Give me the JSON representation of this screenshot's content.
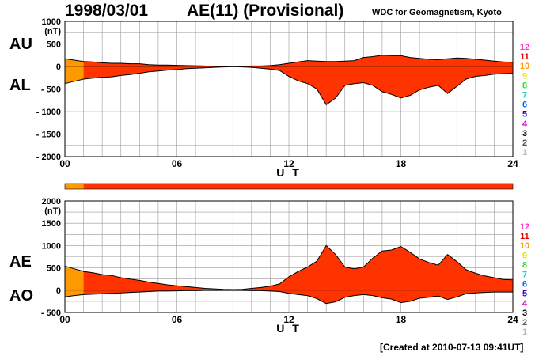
{
  "header": {
    "date": "1998/03/01",
    "index_title": "AE(11) (Provisional)",
    "organization": "WDC for Geomagnetism, Kyoto"
  },
  "footer": {
    "created": "[Created at 2010-07-13 09:41UT]"
  },
  "legend": {
    "labels": [
      "12",
      "11",
      "10",
      "9",
      "8",
      "7",
      "6",
      "5",
      "4",
      "3",
      "2",
      "1"
    ],
    "colors": [
      "#ff33cc",
      "#e60000",
      "#ff9900",
      "#e6e600",
      "#33dd33",
      "#22cccc",
      "#0066ff",
      "#3300cc",
      "#cc00cc",
      "#000000",
      "#555555",
      "#bbbbbb"
    ]
  },
  "colors": {
    "main_fill": "#ff3300",
    "partial_fill": "#ff9900",
    "outline": "#000000",
    "grid": "#999999"
  },
  "chart_data": [
    {
      "type": "area",
      "id": "au-al",
      "ylabel_units": "(nT)",
      "series_labels": [
        "AU",
        "AL"
      ],
      "xlabel": "U T",
      "xlim": [
        0,
        24
      ],
      "ylim": [
        -2000,
        1000
      ],
      "xticks": [
        "00",
        "06",
        "12",
        "18",
        "24"
      ],
      "yticks": [
        "1000",
        "500",
        "0",
        "- 500",
        "- 1000",
        "- 1500",
        "- 2000"
      ],
      "x": [
        0,
        0.5,
        1,
        1.5,
        2,
        2.5,
        3,
        3.5,
        4,
        4.5,
        5,
        5.5,
        6,
        6.5,
        7,
        7.5,
        8,
        8.5,
        9,
        9.5,
        10,
        10.5,
        11,
        11.5,
        12,
        12.5,
        13,
        13.5,
        14,
        14.5,
        15,
        15.5,
        16,
        16.5,
        17,
        17.5,
        18,
        18.5,
        19,
        19.5,
        20,
        20.5,
        21,
        21.5,
        22,
        22.5,
        23,
        23.5,
        24
      ],
      "upper": [
        170,
        140,
        110,
        100,
        80,
        70,
        70,
        60,
        60,
        40,
        30,
        30,
        25,
        20,
        15,
        10,
        5,
        5,
        5,
        5,
        10,
        10,
        20,
        40,
        70,
        100,
        130,
        120,
        110,
        110,
        120,
        130,
        200,
        220,
        250,
        240,
        240,
        200,
        180,
        160,
        150,
        170,
        190,
        180,
        160,
        140,
        120,
        100,
        90
      ],
      "lower": [
        -380,
        -330,
        -280,
        -260,
        -240,
        -230,
        -200,
        -180,
        -150,
        -120,
        -100,
        -80,
        -70,
        -50,
        -40,
        -30,
        -20,
        -10,
        -5,
        -10,
        -20,
        -40,
        -60,
        -90,
        -220,
        -320,
        -380,
        -500,
        -850,
        -700,
        -420,
        -380,
        -360,
        -420,
        -560,
        -620,
        -700,
        -640,
        -520,
        -460,
        -420,
        -600,
        -440,
        -280,
        -220,
        -200,
        -170,
        -160,
        -150
      ],
      "partial_until": 1.0
    },
    {
      "type": "area",
      "id": "ae-ao",
      "ylabel_units": "(nT)",
      "series_labels": [
        "AE",
        "AO"
      ],
      "xlabel": "U T",
      "xlim": [
        0,
        24
      ],
      "ylim": [
        -500,
        2000
      ],
      "xticks": [
        "00",
        "06",
        "12",
        "18",
        "24"
      ],
      "yticks": [
        "2000",
        "1500",
        "1000",
        "500",
        "0",
        "- 500"
      ],
      "x": [
        0,
        0.5,
        1,
        1.5,
        2,
        2.5,
        3,
        3.5,
        4,
        4.5,
        5,
        5.5,
        6,
        6.5,
        7,
        7.5,
        8,
        8.5,
        9,
        9.5,
        10,
        10.5,
        11,
        11.5,
        12,
        12.5,
        13,
        13.5,
        14,
        14.5,
        15,
        15.5,
        16,
        16.5,
        17,
        17.5,
        18,
        18.5,
        19,
        19.5,
        20,
        20.5,
        21,
        21.5,
        22,
        22.5,
        23,
        23.5,
        24
      ],
      "upper": [
        540,
        480,
        420,
        390,
        350,
        330,
        280,
        250,
        220,
        180,
        150,
        120,
        100,
        80,
        60,
        40,
        30,
        20,
        15,
        20,
        40,
        60,
        90,
        140,
        300,
        420,
        520,
        650,
        1000,
        800,
        520,
        480,
        520,
        720,
        880,
        900,
        980,
        850,
        700,
        620,
        560,
        800,
        640,
        460,
        380,
        320,
        280,
        240,
        230
      ],
      "lower": [
        -150,
        -120,
        -100,
        -90,
        -80,
        -70,
        -60,
        -50,
        -40,
        -30,
        -20,
        -20,
        -15,
        -10,
        -10,
        -5,
        -5,
        -5,
        -5,
        -5,
        -10,
        -10,
        -20,
        -30,
        -70,
        -100,
        -120,
        -190,
        -300,
        -260,
        -160,
        -120,
        -100,
        -120,
        -170,
        -200,
        -280,
        -250,
        -180,
        -160,
        -130,
        -210,
        -150,
        -80,
        -60,
        -50,
        -40,
        -40,
        -40
      ],
      "partial_until": 1.0
    }
  ]
}
